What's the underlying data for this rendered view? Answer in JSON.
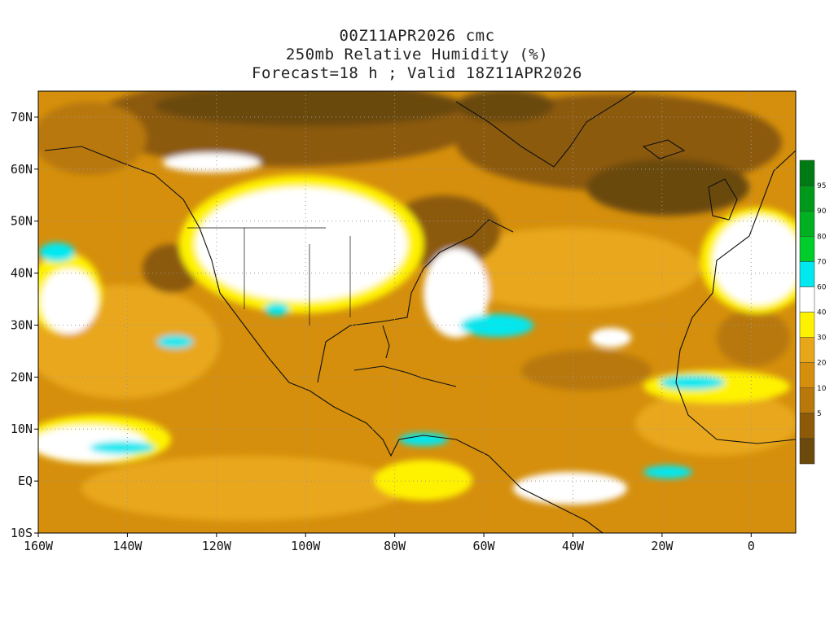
{
  "header": {
    "line1": "00Z11APR2026 cmc",
    "line2": "250mb Relative Humidity (%)",
    "line3": "Forecast=18 h ; Valid 18Z11APR2026"
  },
  "map": {
    "lon_range": [
      -160,
      10
    ],
    "lat_range": [
      -10,
      75
    ],
    "lat_ticks": [
      {
        "value": 70,
        "label": "70N"
      },
      {
        "value": 60,
        "label": "60N"
      },
      {
        "value": 50,
        "label": "50N"
      },
      {
        "value": 40,
        "label": "40N"
      },
      {
        "value": 30,
        "label": "30N"
      },
      {
        "value": 20,
        "label": "20N"
      },
      {
        "value": 10,
        "label": "10N"
      },
      {
        "value": 0,
        "label": "EQ"
      },
      {
        "value": -10,
        "label": "10S"
      }
    ],
    "lon_ticks": [
      {
        "value": -160,
        "label": "160W"
      },
      {
        "value": -140,
        "label": "140W"
      },
      {
        "value": -120,
        "label": "120W"
      },
      {
        "value": -100,
        "label": "100W"
      },
      {
        "value": -80,
        "label": "80W"
      },
      {
        "value": -60,
        "label": "60W"
      },
      {
        "value": -40,
        "label": "40W"
      },
      {
        "value": -20,
        "label": "20W"
      },
      {
        "value": 0,
        "label": "0"
      }
    ]
  },
  "colorbar": {
    "levels": [
      {
        "label": "",
        "color": "#6b4a0c"
      },
      {
        "label": "5",
        "color": "#8c5a08"
      },
      {
        "label": "10",
        "color": "#b8780a"
      },
      {
        "label": "20",
        "color": "#d58f0c"
      },
      {
        "label": "30",
        "color": "#e8a71a"
      },
      {
        "label": "40",
        "color": "#fff200"
      },
      {
        "label": "60",
        "color": "#ffffff"
      },
      {
        "label": "70",
        "color": "#00e8f0"
      },
      {
        "label": "80",
        "color": "#00cc2a"
      },
      {
        "label": "90",
        "color": "#00b020"
      },
      {
        "label": "95",
        "color": "#00991a"
      },
      {
        "label": "",
        "color": "#007a12"
      }
    ]
  }
}
